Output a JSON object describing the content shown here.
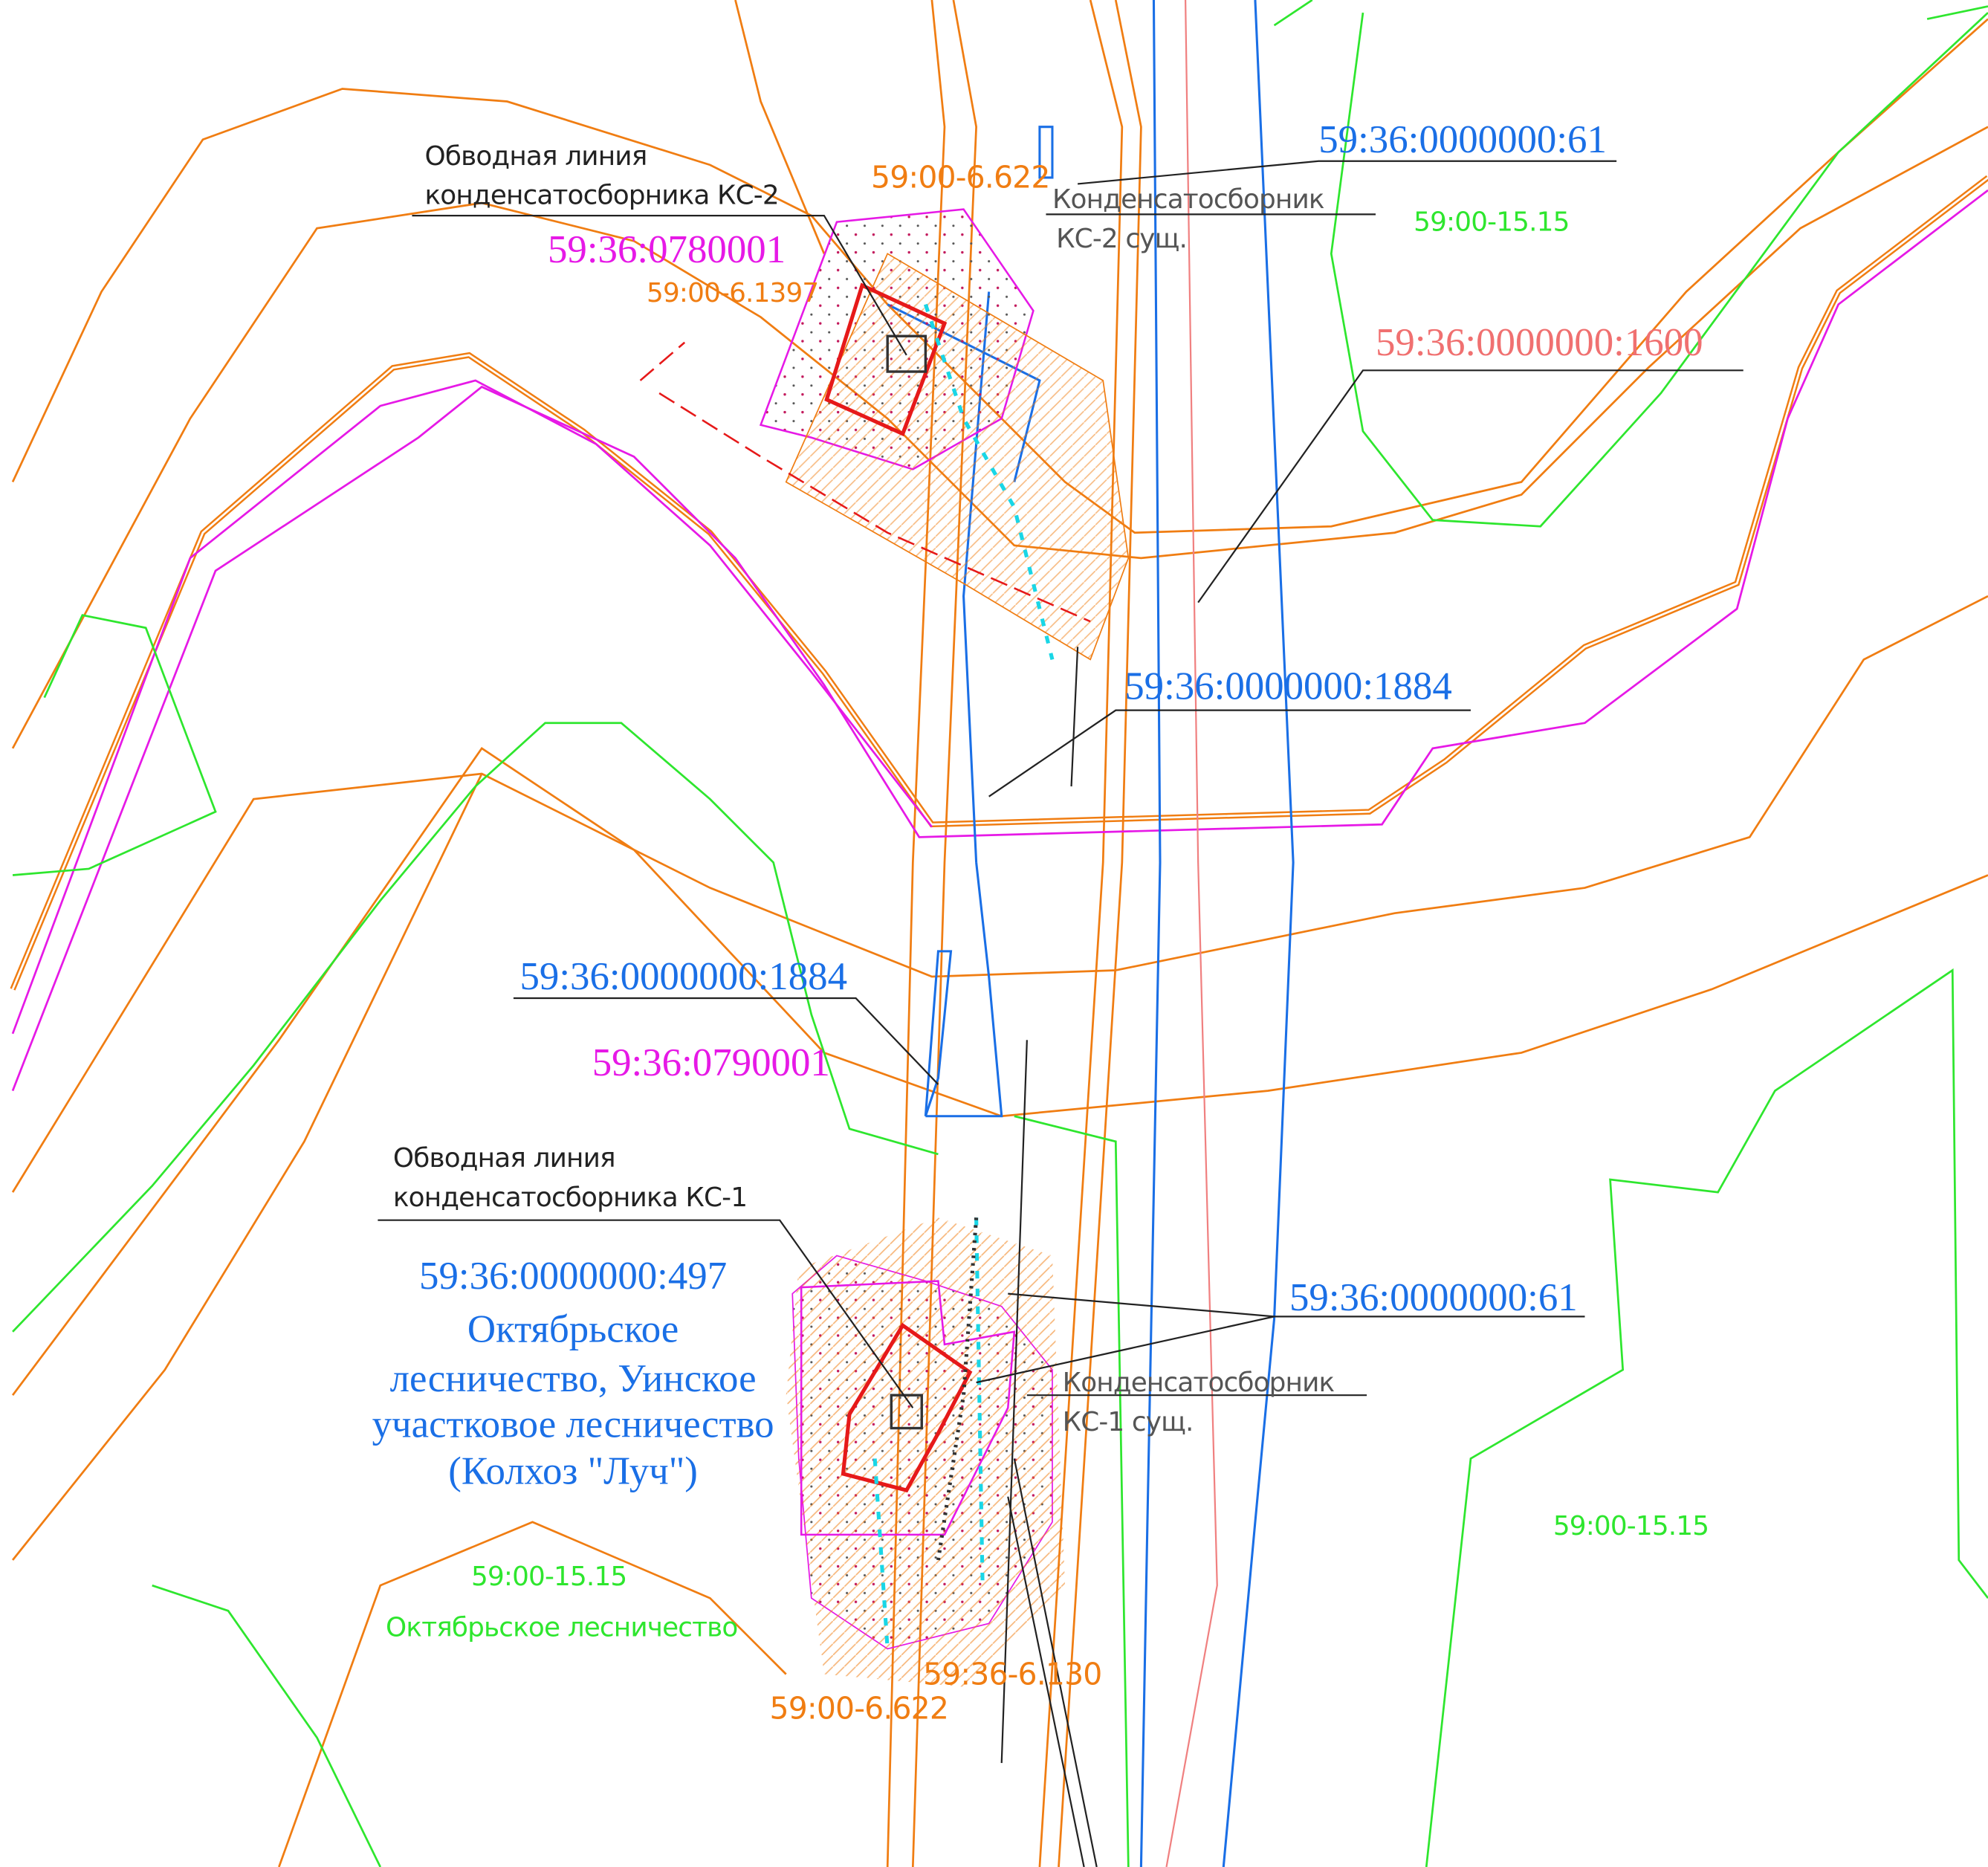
{
  "labels": [
    {
      "lines": [
        "Обводная линия",
        "конденсатосборника КС-2"
      ]
    },
    {
      "lines": [
        "59:36:0780001"
      ]
    },
    {
      "lines": [
        "59:00-6.622"
      ]
    },
    {
      "lines": [
        "59:00-6.1397"
      ]
    },
    {
      "lines": [
        "59:36:0000000:61"
      ]
    },
    {
      "lines": [
        "Конденсатосборник",
        "КС-2 сущ."
      ]
    },
    {
      "lines": [
        "59:00-15.15"
      ]
    },
    {
      "lines": [
        "59:36:0000000:1600"
      ]
    },
    {
      "lines": [
        "59:36:0000000:1884"
      ]
    },
    {
      "lines": [
        "59:36:0000000:1884"
      ]
    },
    {
      "lines": [
        "59:36:0790001"
      ]
    },
    {
      "lines": [
        "Обводная линия",
        "конденсатосборника КС-1"
      ]
    },
    {
      "lines": [
        "59:36:0000000:497",
        "Октябрьское",
        "лесничество, Уинское",
        "участковое лесничество",
        "(Колхоз \"Луч\")"
      ]
    },
    {
      "lines": [
        "59:36:0000000:61"
      ]
    },
    {
      "lines": [
        "Конденсатосборник",
        "КС-1 сущ."
      ]
    },
    {
      "lines": [
        "59:00-15.15"
      ]
    },
    {
      "lines": [
        "59:00-15.15",
        "Октябрьское лесничество"
      ]
    },
    {
      "lines": [
        "59:36-6.130"
      ]
    },
    {
      "lines": [
        "59:00-6.622"
      ]
    }
  ]
}
